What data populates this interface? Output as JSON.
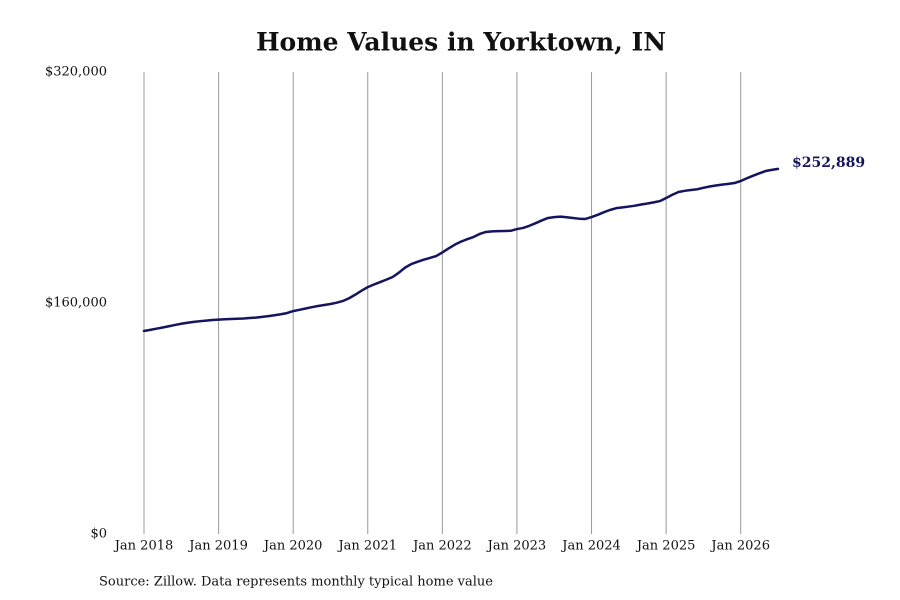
{
  "chart_data": {
    "type": "line",
    "title": "Home Values in Yorktown, IN",
    "source": "Source: Zillow. Data represents monthly typical home value",
    "color": "#15145f",
    "x": [
      "2018-01",
      "2018-02",
      "2018-03",
      "2018-04",
      "2018-05",
      "2018-06",
      "2018-07",
      "2018-08",
      "2018-09",
      "2018-10",
      "2018-11",
      "2018-12",
      "2019-01",
      "2019-02",
      "2019-03",
      "2019-04",
      "2019-05",
      "2019-06",
      "2019-07",
      "2019-08",
      "2019-09",
      "2019-10",
      "2019-11",
      "2019-12",
      "2020-01",
      "2020-02",
      "2020-03",
      "2020-04",
      "2020-05",
      "2020-06",
      "2020-07",
      "2020-08",
      "2020-09",
      "2020-10",
      "2020-11",
      "2020-12",
      "2021-01",
      "2021-02",
      "2021-03",
      "2021-04",
      "2021-05",
      "2021-06",
      "2021-07",
      "2021-08",
      "2021-09",
      "2021-10",
      "2021-11",
      "2021-12",
      "2022-01",
      "2022-02",
      "2022-03",
      "2022-04",
      "2022-05",
      "2022-06",
      "2022-07",
      "2022-08",
      "2022-09",
      "2022-10",
      "2022-11",
      "2022-12",
      "2023-01",
      "2023-02",
      "2023-03",
      "2023-04",
      "2023-05",
      "2023-06",
      "2023-07",
      "2023-08",
      "2023-09",
      "2023-10",
      "2023-11",
      "2023-12",
      "2024-01",
      "2024-02",
      "2024-03",
      "2024-04",
      "2024-05",
      "2024-06",
      "2024-07",
      "2024-08",
      "2024-09",
      "2024-10",
      "2024-11",
      "2024-12",
      "2025-01",
      "2025-02",
      "2025-03",
      "2025-04",
      "2025-05",
      "2025-06",
      "2025-07",
      "2025-08",
      "2025-09",
      "2025-10",
      "2025-11",
      "2025-12",
      "2026-01",
      "2026-02",
      "2026-03",
      "2026-04",
      "2026-05",
      "2026-06",
      "2026-07"
    ],
    "values": [
      140600,
      141400,
      142200,
      143000,
      143900,
      144800,
      145600,
      146300,
      146900,
      147400,
      147800,
      148200,
      148500,
      148700,
      148900,
      149100,
      149300,
      149600,
      149900,
      150400,
      150900,
      151500,
      152200,
      153000,
      154400,
      155300,
      156200,
      157100,
      157900,
      158600,
      159300,
      160200,
      161400,
      163300,
      165800,
      168500,
      171000,
      172800,
      174500,
      176200,
      178000,
      181000,
      184500,
      187000,
      188500,
      190000,
      191200,
      192500,
      195000,
      197800,
      200400,
      202500,
      204200,
      205700,
      207800,
      209200,
      209600,
      209800,
      209900,
      210000,
      211200,
      212000,
      213500,
      215300,
      217200,
      218900,
      219500,
      219800,
      219400,
      218900,
      218400,
      218200,
      219500,
      221100,
      222900,
      224500,
      225700,
      226200,
      226800,
      227400,
      228200,
      228900,
      229700,
      230600,
      232700,
      235000,
      236900,
      237700,
      238300,
      238800,
      239800,
      240700,
      241400,
      242000,
      242500,
      243100,
      244500,
      246400,
      248200,
      249800,
      251400,
      252200,
      252889
    ],
    "value_labels": [
      null,
      null,
      null,
      null,
      null,
      null,
      null,
      null,
      null,
      null,
      null,
      null,
      null,
      null,
      null,
      null,
      null,
      null,
      null,
      null,
      null,
      null,
      null,
      null,
      null,
      null,
      null,
      null,
      null,
      null,
      null,
      null,
      null,
      null,
      null,
      null,
      null,
      null,
      null,
      null,
      null,
      null,
      null,
      null,
      null,
      null,
      null,
      null,
      null,
      null,
      null,
      null,
      null,
      null,
      null,
      null,
      null,
      null,
      null,
      null,
      null,
      null,
      null,
      null,
      null,
      null,
      null,
      null,
      null,
      null,
      null,
      null,
      null,
      null,
      null,
      null,
      null,
      null,
      null,
      null,
      null,
      null,
      null,
      null,
      null,
      null,
      null,
      null,
      null,
      null,
      null,
      null,
      null,
      null,
      null,
      null,
      null,
      null,
      null,
      null,
      null,
      null,
      "$252,889"
    ],
    "xlim": [
      "2018-01",
      "2026-07"
    ],
    "xticks": [
      {
        "value": "2018-01",
        "label": "Jan 2018"
      },
      {
        "value": "2019-01",
        "label": "Jan 2019"
      },
      {
        "value": "2020-01",
        "label": "Jan 2020"
      },
      {
        "value": "2021-01",
        "label": "Jan 2021"
      },
      {
        "value": "2022-01",
        "label": "Jan 2022"
      },
      {
        "value": "2023-01",
        "label": "Jan 2023"
      },
      {
        "value": "2024-01",
        "label": "Jan 2024"
      },
      {
        "value": "2025-01",
        "label": "Jan 2025"
      },
      {
        "value": "2026-01",
        "label": "Jan 2026"
      }
    ],
    "ylim": [
      0,
      320000
    ],
    "yticks": [
      {
        "value": 0,
        "label": "$0"
      },
      {
        "value": 160000,
        "label": "$160,000"
      },
      {
        "value": 320000,
        "label": "$320,000"
      }
    ],
    "grid": "x"
  }
}
